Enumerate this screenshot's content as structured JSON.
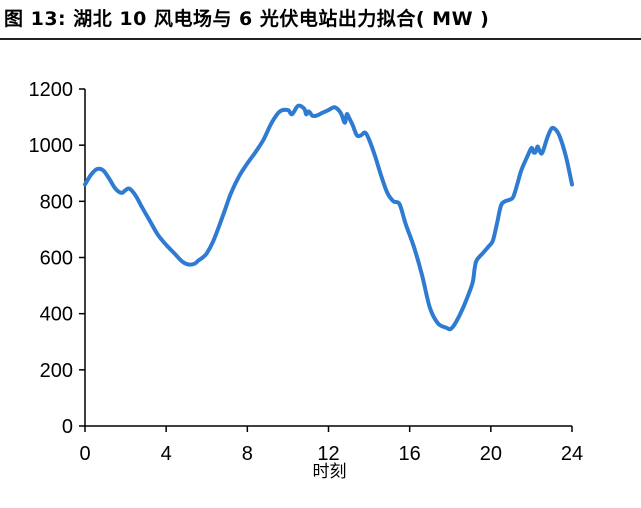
{
  "figure": {
    "title": "图 13: 湖北 10 风电场与 6 光伏电站出力拟合( MW )"
  },
  "chart_data": {
    "type": "line",
    "title": "",
    "xlabel": "时刻",
    "ylabel": "",
    "xlim": [
      0,
      24
    ],
    "ylim": [
      0,
      1200
    ],
    "xticks": [
      0,
      4,
      8,
      12,
      16,
      20,
      24
    ],
    "yticks": [
      0,
      200,
      400,
      600,
      800,
      1000,
      1200
    ],
    "grid": false,
    "legend": "none",
    "line_color": "#2f7bd1",
    "series": [
      {
        "x": [
          0,
          0.3,
          0.6,
          0.9,
          1.2,
          1.5,
          1.8,
          2.0,
          2.2,
          2.5,
          2.8,
          3.2,
          3.6,
          4.0,
          4.4,
          4.8,
          5.1,
          5.4,
          5.6,
          5.8,
          6.0,
          6.3,
          6.6,
          6.9,
          7.2,
          7.6,
          8.0,
          8.4,
          8.8,
          9.2,
          9.6,
          10.0,
          10.2,
          10.5,
          10.8,
          10.9,
          11.0,
          11.1,
          11.2,
          11.4,
          11.7,
          12.0,
          12.3,
          12.6,
          12.8,
          12.9,
          13.0,
          13.1,
          13.2,
          13.4,
          13.6,
          13.8,
          14.0,
          14.3,
          14.6,
          14.9,
          15.2,
          15.5,
          15.8,
          16.2,
          16.6,
          17.0,
          17.4,
          17.8,
          18.0,
          18.2,
          18.5,
          18.8,
          19.1,
          19.2,
          19.3,
          19.6,
          19.9,
          20.1,
          20.3,
          20.5,
          20.7,
          20.9,
          21.1,
          21.3,
          21.5,
          21.8,
          22.0,
          22.1,
          22.2,
          22.3,
          22.4,
          22.5,
          22.6,
          22.8,
          23.0,
          23.2,
          23.4,
          23.7,
          24.0
        ],
        "y": [
          860,
          895,
          915,
          910,
          880,
          845,
          830,
          840,
          845,
          820,
          780,
          730,
          680,
          645,
          615,
          585,
          575,
          578,
          590,
          600,
          615,
          655,
          710,
          770,
          830,
          890,
          935,
          975,
          1020,
          1080,
          1120,
          1125,
          1110,
          1140,
          1130,
          1110,
          1120,
          1115,
          1105,
          1105,
          1115,
          1125,
          1135,
          1115,
          1080,
          1110,
          1100,
          1085,
          1070,
          1035,
          1035,
          1045,
          1020,
          960,
          890,
          830,
          800,
          790,
          720,
          640,
          540,
          420,
          365,
          350,
          345,
          360,
          400,
          450,
          510,
          560,
          590,
          615,
          640,
          660,
          720,
          785,
          800,
          805,
          815,
          860,
          910,
          960,
          990,
          975,
          975,
          995,
          980,
          970,
          985,
          1030,
          1060,
          1055,
          1030,
          960,
          860
        ]
      }
    ]
  }
}
